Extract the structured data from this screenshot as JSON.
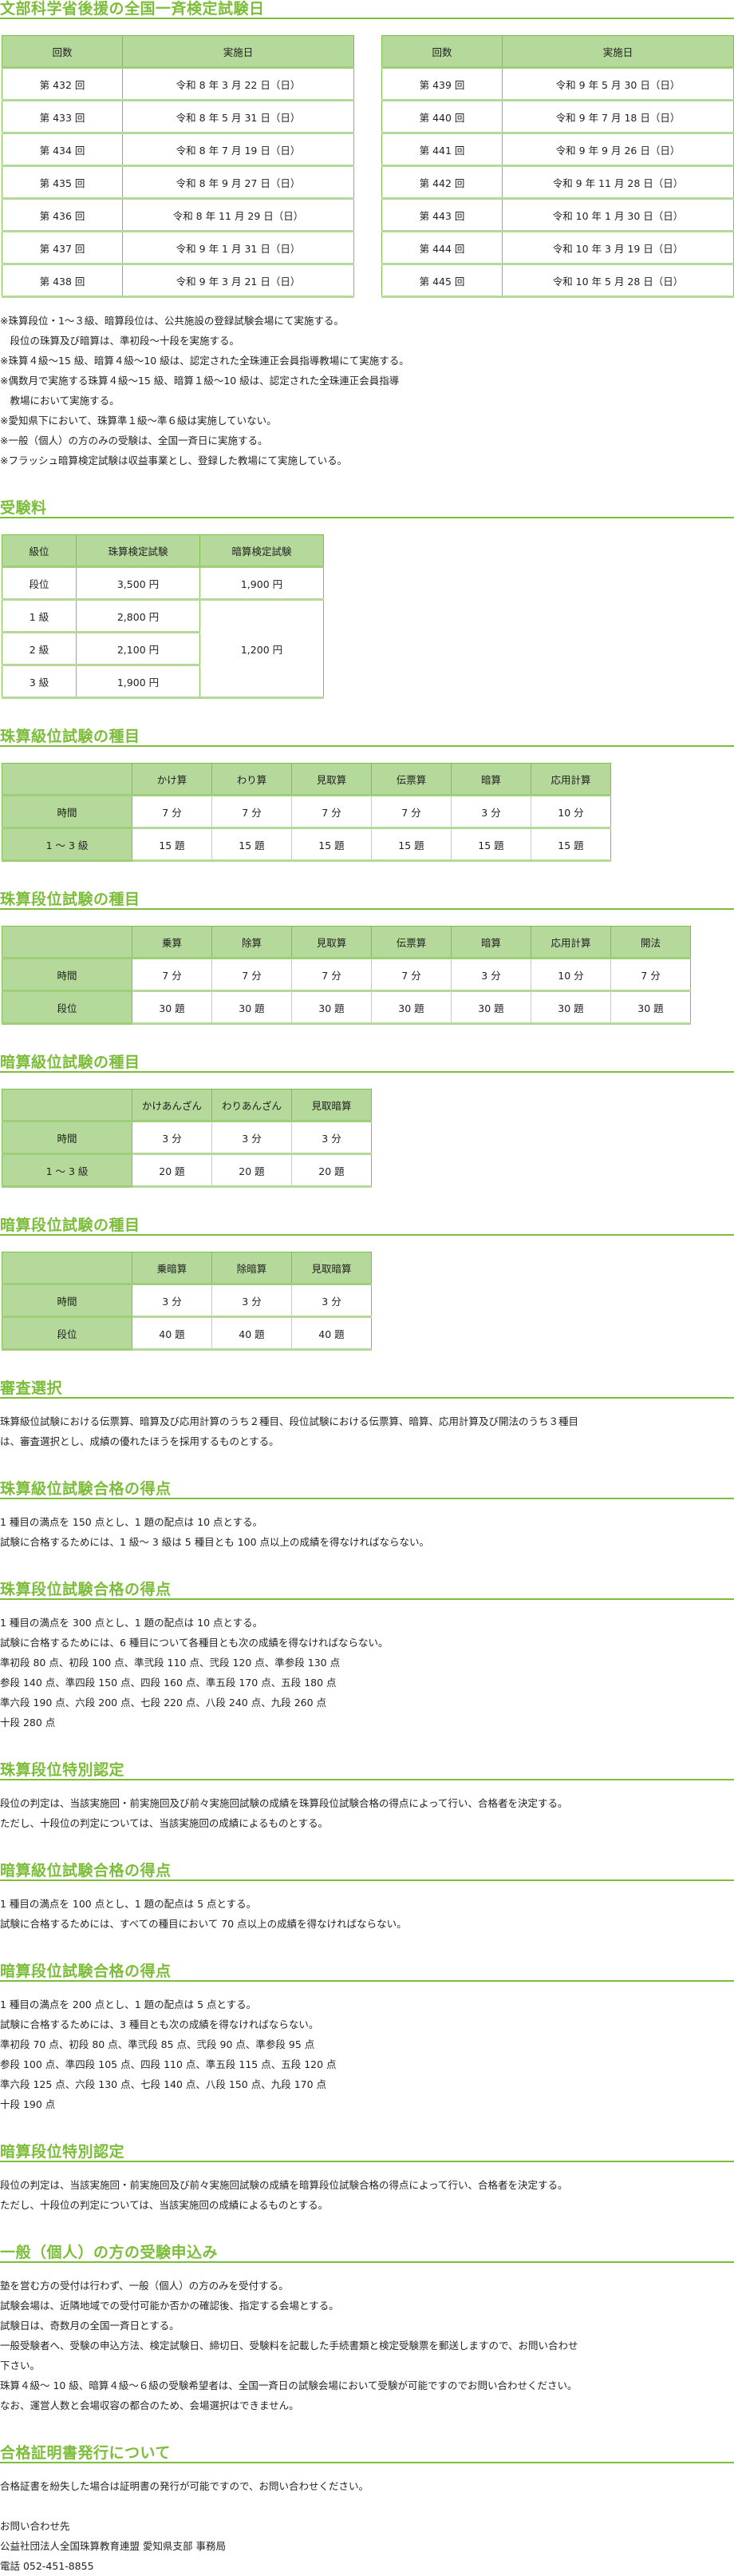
{
  "theme": {
    "accent": "#7cbd3a",
    "header_bg": "#b5d89b",
    "border": "#80c04a"
  },
  "sections": [
    {
      "title": "文部科学省後援の全国一斉検定試験日",
      "blocks": [
        {
          "type": "tables",
          "tables": [
            {
              "kind": "date",
              "cols": [
                151,
                290
              ],
              "header": [
                "回数",
                "実施日"
              ],
              "rows": [
                [
                  "第 432 回",
                  "令和 8 年 3 月 22 日（日）"
                ],
                [
                  "第 433 回",
                  "令和 8 年 5 月 31 日（日）"
                ],
                [
                  "第 434 回",
                  "令和 8 年 7 月 19 日（日）"
                ],
                [
                  "第 435 回",
                  "令和 8 年 9 月 27 日（日）"
                ],
                [
                  "第 436 回",
                  "令和 8 年 11 月 29 日（日）"
                ],
                [
                  "第 437 回",
                  "令和 9 年 1 月 31 日（日）"
                ],
                [
                  "第 438 回",
                  "令和 9 年 3 月 21 日（日）"
                ]
              ]
            },
            {
              "kind": "date",
              "cols": [
                151,
                290
              ],
              "header": [
                "回数",
                "実施日"
              ],
              "rows": [
                [
                  "第 439 回",
                  "令和 9 年 5 月 30 日（日）"
                ],
                [
                  "第 440 回",
                  "令和 9 年 7 月 18 日（日）"
                ],
                [
                  "第 441 回",
                  "令和 9 年 9 月 26 日（日）"
                ],
                [
                  "第 442 回",
                  "令和 9 年 11 月 28 日（日）"
                ],
                [
                  "第 443 回",
                  "令和 10 年 1 月 30 日（日）"
                ],
                [
                  "第 444 回",
                  "令和 10 年 3 月 19 日（日）"
                ],
                [
                  "第 445 回",
                  "令和 10 年 5 月 28 日（日）"
                ]
              ]
            }
          ]
        },
        {
          "type": "lines",
          "lines": [
            "※珠算段位・1～３級、暗算段位は、公共施設の登録試験会場にて実施する。",
            "　段位の珠算及び暗算は、準初段～十段を実施する。",
            "※珠算４級～15 級、暗算４級～10 級は、認定された全珠連正会員指導教場にて実施する。",
            "※偶数月で実施する珠算４級～15 級、暗算１級～10 級は、認定された全珠連正会員指導",
            "　教場において実施する。",
            "※愛知県下において、珠算準１級～準６級は実施していない。",
            "※一般（個人）の方のみの受験は、全国一斉日に実施する。",
            "※フラッシュ暗算検定試験は収益事業とし、登録した教場にて実施している。"
          ]
        }
      ]
    },
    {
      "title": "受験料",
      "blocks": [
        {
          "type": "table",
          "kind": "fee",
          "cols": [
            93,
            155,
            155
          ],
          "header": [
            "級位",
            "珠算検定試験",
            "暗算検定試験"
          ],
          "rows": [
            [
              "段位",
              "3,500 円",
              "1,900 円"
            ],
            [
              "1 級",
              "2,800 円",
              "1,200 円"
            ],
            [
              "2 級",
              "2,100 円",
              null
            ],
            [
              "3 級",
              "1,900 円",
              null
            ]
          ]
        }
      ]
    },
    {
      "title": "珠算級位試験の種目",
      "blocks": [
        {
          "type": "table",
          "kind": "subj",
          "cols": [
            163,
            100,
            100,
            100,
            100,
            100,
            100
          ],
          "header": [
            "",
            "かけ算",
            "わり算",
            "見取算",
            "伝票算",
            "暗算",
            "応用計算"
          ],
          "rows": [
            [
              "時間",
              "7 分",
              "7 分",
              "7 分",
              "7 分",
              "3 分",
              "10 分"
            ],
            [
              "1 ～ 3 級",
              "15 題",
              "15 題",
              "15 題",
              "15 題",
              "15 題",
              "15 題"
            ]
          ]
        }
      ]
    },
    {
      "title": "珠算段位試験の種目",
      "blocks": [
        {
          "type": "table",
          "kind": "subj",
          "cols": [
            163,
            100,
            100,
            100,
            100,
            100,
            100,
            100
          ],
          "header": [
            "",
            "乗算",
            "除算",
            "見取算",
            "伝票算",
            "暗算",
            "応用計算",
            "開法"
          ],
          "rows": [
            [
              "時間",
              "7 分",
              "7 分",
              "7 分",
              "7 分",
              "3 分",
              "10 分",
              "7 分"
            ],
            [
              "段位",
              "30 題",
              "30 題",
              "30 題",
              "30 題",
              "30 題",
              "30 題",
              "30 題"
            ]
          ]
        }
      ]
    },
    {
      "title": "暗算級位試験の種目",
      "blocks": [
        {
          "type": "table",
          "kind": "subj",
          "cols": [
            163,
            100,
            100,
            100
          ],
          "header": [
            "",
            "かけあんざん",
            "わりあんざん",
            "見取暗算"
          ],
          "rows": [
            [
              "時間",
              "3 分",
              "3 分",
              "3 分"
            ],
            [
              "1 ～ 3 級",
              "20 題",
              "20 題",
              "20 題"
            ]
          ]
        }
      ]
    },
    {
      "title": "暗算段位試験の種目",
      "blocks": [
        {
          "type": "table",
          "kind": "subj",
          "cols": [
            163,
            100,
            100,
            100
          ],
          "header": [
            "",
            "乗暗算",
            "除暗算",
            "見取暗算"
          ],
          "rows": [
            [
              "時間",
              "3 分",
              "3 分",
              "3 分"
            ],
            [
              "段位",
              "40 題",
              "40 題",
              "40 題"
            ]
          ]
        }
      ]
    },
    {
      "title": "審査選択",
      "blocks": [
        {
          "type": "lines",
          "lines": [
            "珠算級位試験における伝票算、暗算及び応用計算のうち２種目、段位試験における伝票算、暗算、応用計算及び開法のうち３種目",
            "は、審査選択とし、成績の優れたほうを採用するものとする。"
          ]
        }
      ]
    },
    {
      "title": "珠算級位試験合格の得点",
      "blocks": [
        {
          "type": "lines",
          "lines": [
            "1 種目の満点を 150 点とし、1 題の配点は 10 点とする。",
            "試験に合格するためには、1 級～ 3 級は 5 種目とも 100 点以上の成績を得なければならない。"
          ]
        }
      ]
    },
    {
      "title": "珠算段位試験合格の得点",
      "blocks": [
        {
          "type": "lines",
          "lines": [
            "1 種目の満点を 300 点とし、1 題の配点は 10 点とする。",
            "試験に合格するためには、6 種目について各種目とも次の成績を得なければならない。",
            "準初段 80 点、初段 100 点、準弐段 110 点、弐段 120 点、準参段 130 点",
            "参段 140 点、準四段 150 点、四段 160 点、準五段 170 点、五段 180 点",
            "準六段 190 点、六段 200 点、七段 220 点、八段 240 点、九段 260 点",
            "十段 280 点"
          ]
        }
      ]
    },
    {
      "title": "珠算段位特別認定",
      "blocks": [
        {
          "type": "lines",
          "lines": [
            "段位の判定は、当該実施回・前実施回及び前々実施回試験の成績を珠算段位試験合格の得点によって行い、合格者を決定する。",
            "ただし、十段位の判定については、当該実施回の成績によるものとする。"
          ]
        }
      ]
    },
    {
      "title": "暗算級位試験合格の得点",
      "blocks": [
        {
          "type": "lines",
          "lines": [
            "1 種目の満点を 100 点とし、1 題の配点は 5 点とする。",
            "試験に合格するためには、すべての種目において 70 点以上の成績を得なければならない。"
          ]
        }
      ]
    },
    {
      "title": "暗算段位試験合格の得点",
      "blocks": [
        {
          "type": "lines",
          "lines": [
            "1 種目の満点を 200 点とし、1 題の配点は 5 点とする。",
            "試験に合格するためには、3 種目とも次の成績を得なければならない。",
            "準初段 70 点、初段 80 点、準弐段 85 点、弐段 90 点、準参段 95 点",
            "参段 100 点、準四段 105 点、四段 110 点、準五段 115 点、五段 120 点",
            "準六段 125 点、六段 130 点、七段 140 点、八段 150 点、九段 170 点",
            "十段 190 点"
          ]
        }
      ]
    },
    {
      "title": "暗算段位特別認定",
      "blocks": [
        {
          "type": "lines",
          "lines": [
            "段位の判定は、当該実施回・前実施回及び前々実施回試験の成績を暗算段位試験合格の得点によって行い、合格者を決定する。",
            "ただし、十段位の判定については、当該実施回の成績によるものとする。"
          ]
        }
      ]
    },
    {
      "title": "一般（個人）の方の受験申込み",
      "blocks": [
        {
          "type": "lines",
          "lines": [
            "塾を営む方の受付は行わず、一般（個人）の方のみを受付する。",
            "試験会場は、近隣地域での受付可能か否かの確認後、指定する会場とする。",
            "試験日は、奇数月の全国一斉日とする。",
            "一般受験者へ、受験の申込方法、検定試験日、締切日、受験料を記載した手続書類と検定受験票を郵送しますので、お問い合わせ",
            "下さい。",
            "珠算４級～ 10 級、暗算４級～６級の受験希望者は、全国一斉日の試験会場において受験が可能ですのでお問い合わせください。",
            "なお、運営人数と会場収容の都合のため、会場選択はできません。"
          ]
        }
      ]
    },
    {
      "title": "合格証明書発行について",
      "blocks": [
        {
          "type": "lines",
          "lines": [
            "合格証書を紛失した場合は証明書の発行が可能ですので、お問い合わせください。",
            "",
            "お問い合わせ先",
            "公益社団法人全国珠算教育連盟 愛知県支部 事務局",
            "電話 052-451-8855"
          ]
        }
      ]
    }
  ]
}
